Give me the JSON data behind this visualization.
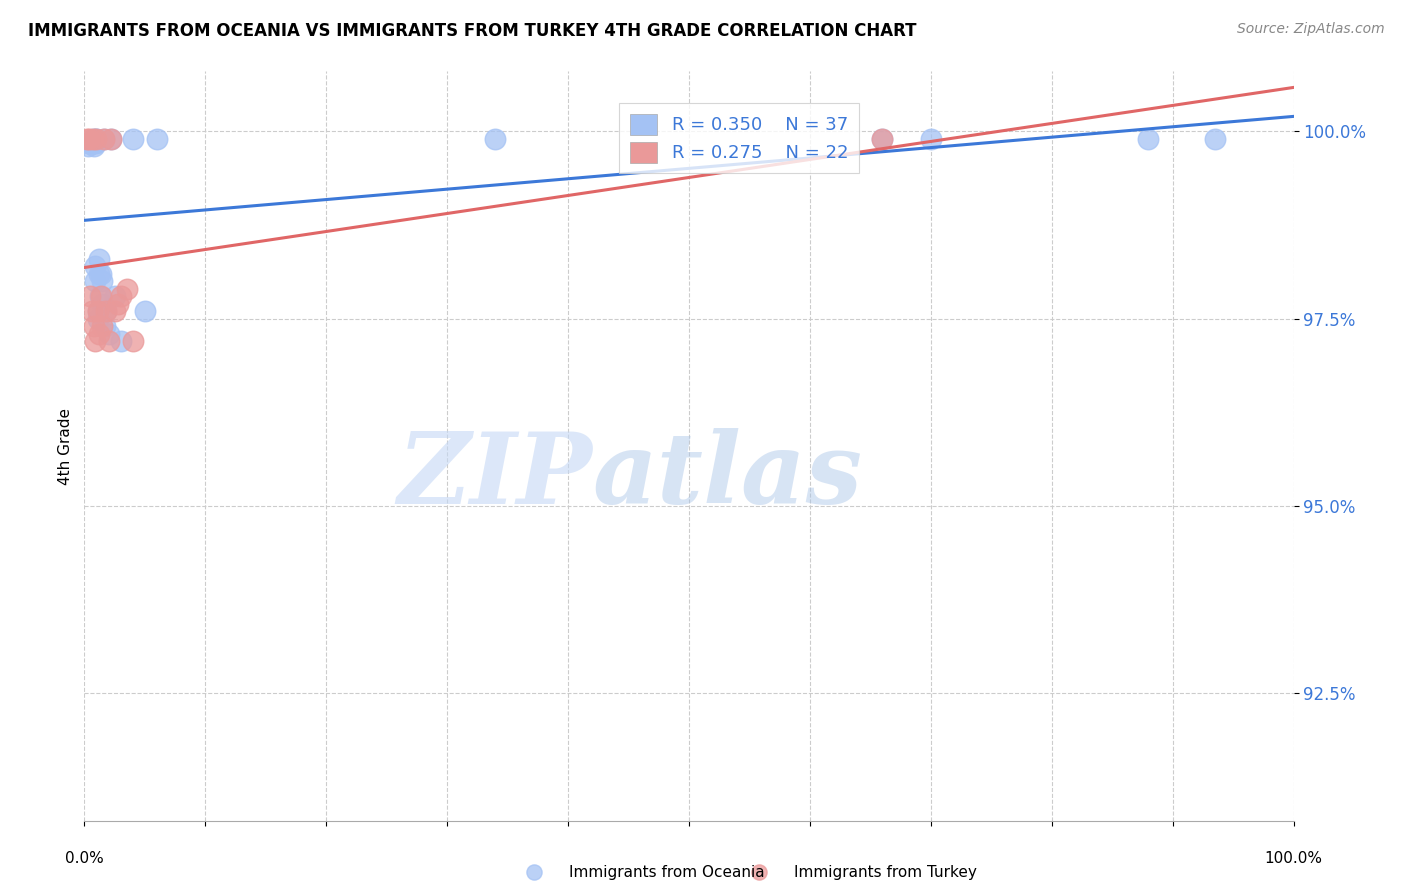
{
  "title": "IMMIGRANTS FROM OCEANIA VS IMMIGRANTS FROM TURKEY 4TH GRADE CORRELATION CHART",
  "source": "Source: ZipAtlas.com",
  "ylabel": "4th Grade",
  "ytick_labels": [
    "100.0%",
    "97.5%",
    "95.0%",
    "92.5%"
  ],
  "ytick_values": [
    1.0,
    0.975,
    0.95,
    0.925
  ],
  "xlim": [
    0.0,
    1.0
  ],
  "ylim": [
    0.908,
    1.008
  ],
  "legend1_r": "0.350",
  "legend1_n": "37",
  "legend2_r": "0.275",
  "legend2_n": "22",
  "oceania_color": "#a4c2f4",
  "turkey_color": "#ea9999",
  "trendline_oceania_color": "#3c78d8",
  "trendline_turkey_color": "#e06666",
  "watermark_zip": "ZIP",
  "watermark_atlas": "atlas",
  "oceania_x": [
    0.003,
    0.003,
    0.005,
    0.006,
    0.007,
    0.007,
    0.008,
    0.008,
    0.009,
    0.009,
    0.01,
    0.01,
    0.01,
    0.01,
    0.011,
    0.011,
    0.012,
    0.012,
    0.013,
    0.014,
    0.015,
    0.015,
    0.016,
    0.017,
    0.018,
    0.02,
    0.022,
    0.025,
    0.03,
    0.04,
    0.05,
    0.06,
    0.34,
    0.66,
    0.7,
    0.88,
    0.935
  ],
  "oceania_y": [
    0.9985,
    0.998,
    0.9985,
    0.9985,
    0.999,
    0.9988,
    0.9985,
    0.998,
    0.982,
    0.98,
    0.999,
    0.999,
    0.9988,
    0.9985,
    0.976,
    0.975,
    0.983,
    0.981,
    0.978,
    0.981,
    0.98,
    0.977,
    0.999,
    0.974,
    0.976,
    0.973,
    0.999,
    0.978,
    0.972,
    0.999,
    0.976,
    0.999,
    0.999,
    0.999,
    0.999,
    0.999,
    0.999
  ],
  "turkey_x": [
    0.002,
    0.004,
    0.005,
    0.006,
    0.007,
    0.008,
    0.009,
    0.01,
    0.011,
    0.012,
    0.014,
    0.015,
    0.016,
    0.018,
    0.02,
    0.022,
    0.025,
    0.028,
    0.03,
    0.035,
    0.04,
    0.66
  ],
  "turkey_y": [
    0.999,
    0.999,
    0.978,
    0.976,
    0.999,
    0.974,
    0.972,
    0.999,
    0.976,
    0.973,
    0.978,
    0.974,
    0.999,
    0.976,
    0.972,
    0.999,
    0.976,
    0.977,
    0.978,
    0.979,
    0.972,
    0.999
  ]
}
